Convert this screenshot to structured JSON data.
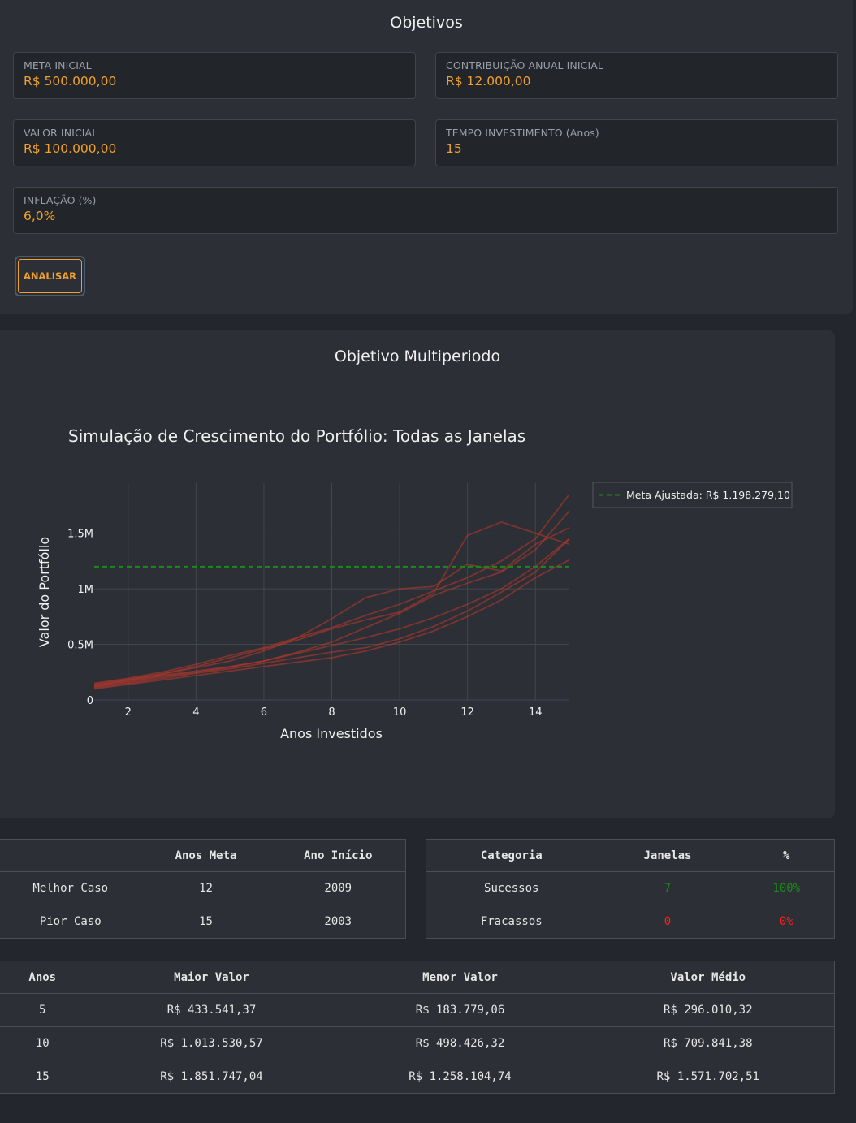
{
  "objectives": {
    "title": "Objetivos",
    "fields": [
      {
        "label": "META INICIAL",
        "value": "R$ 500.000,00"
      },
      {
        "label": "CONTRIBUIÇÃO ANUAL INICIAL",
        "value": "R$ 12.000,00"
      },
      {
        "label": "VALOR INICIAL",
        "value": "R$ 100.000,00"
      },
      {
        "label": "TEMPO INVESTIMENTO (Anos)",
        "value": "15"
      },
      {
        "label": "INFLAÇÃO (%)",
        "value": "6,0%"
      }
    ],
    "analyze_label": "ANALISAR"
  },
  "multiperiod": {
    "title": "Objetivo Multiperiodo"
  },
  "chart_data": {
    "type": "line",
    "title": "Simulação de Crescimento do Portfólio: Todas as Janelas",
    "xlabel": "Anos Investidos",
    "ylabel": "Valor do Portfólio",
    "xlim": [
      1,
      15
    ],
    "ylim": [
      0,
      1950000
    ],
    "x_ticks": [
      2,
      4,
      6,
      8,
      10,
      12,
      14
    ],
    "y_ticks": [
      {
        "value": 0,
        "label": "0"
      },
      {
        "value": 500000,
        "label": "0.5M"
      },
      {
        "value": 1000000,
        "label": "1M"
      },
      {
        "value": 1500000,
        "label": "1.5M"
      }
    ],
    "grid": true,
    "legend_position": "top-right",
    "legend": [
      "Meta Ajustada: R$ 1.198.279,10"
    ],
    "target_line": {
      "value": 1198279.1,
      "color": "#1a8a1a",
      "style": "dashed"
    },
    "line_color": "#c0392b",
    "x": [
      1,
      2,
      3,
      4,
      5,
      6,
      7,
      8,
      9,
      10,
      11,
      12,
      13,
      14,
      15
    ],
    "series": [
      {
        "values": [
          150000,
          195000,
          250000,
          320000,
          400000,
          470000,
          560000,
          650000,
          760000,
          860000,
          980000,
          1100000,
          1250000,
          1450000,
          1850000
        ]
      },
      {
        "values": [
          125000,
          170000,
          220000,
          260000,
          300000,
          350000,
          430000,
          520000,
          650000,
          780000,
          940000,
          1050000,
          1150000,
          1350000,
          1700000
        ]
      },
      {
        "values": [
          140000,
          185000,
          235000,
          300000,
          380000,
          460000,
          540000,
          640000,
          720000,
          790000,
          960000,
          1480000,
          1600000,
          1500000,
          1400000
        ]
      },
      {
        "values": [
          110000,
          150000,
          195000,
          240000,
          280000,
          330000,
          380000,
          430000,
          470000,
          550000,
          660000,
          800000,
          970000,
          1150000,
          1450000
        ]
      },
      {
        "values": [
          120000,
          160000,
          210000,
          250000,
          295000,
          350000,
          420000,
          490000,
          560000,
          640000,
          740000,
          860000,
          1000000,
          1200000,
          1450000
        ]
      },
      {
        "values": [
          130000,
          180000,
          230000,
          290000,
          350000,
          440000,
          560000,
          730000,
          920000,
          1000000,
          1020000,
          1220000,
          1160000,
          1400000,
          1550000
        ]
      },
      {
        "values": [
          100000,
          140000,
          180000,
          220000,
          260000,
          300000,
          340000,
          380000,
          440000,
          520000,
          620000,
          750000,
          900000,
          1100000,
          1260000
        ]
      }
    ]
  },
  "summary_table": {
    "headers": [
      "",
      "Anos Meta",
      "Ano Início"
    ],
    "rows": [
      [
        "Melhor Caso",
        "12",
        "2009"
      ],
      [
        "Pior Caso",
        "15",
        "2003"
      ]
    ]
  },
  "category_table": {
    "headers": [
      "Categoria",
      "Janelas",
      "%"
    ],
    "rows": [
      [
        "Sucessos",
        "7",
        "100%"
      ],
      [
        "Fracassos",
        "0",
        "0%"
      ]
    ]
  },
  "values_table": {
    "headers": [
      "Anos",
      "Maior Valor",
      "Menor Valor",
      "Valor Médio"
    ],
    "rows": [
      [
        "5",
        "R$ 433.541,37",
        "R$ 183.779,06",
        "R$ 296.010,32"
      ],
      [
        "10",
        "R$ 1.013.530,57",
        "R$ 498.426,32",
        "R$ 709.841,38"
      ],
      [
        "15",
        "R$ 1.851.747,04",
        "R$ 1.258.104,74",
        "R$ 1.571.702,51"
      ]
    ]
  },
  "colors": {
    "accent": "#f0a030",
    "success": "#1a8a1a",
    "failure": "#ff1e1e"
  }
}
